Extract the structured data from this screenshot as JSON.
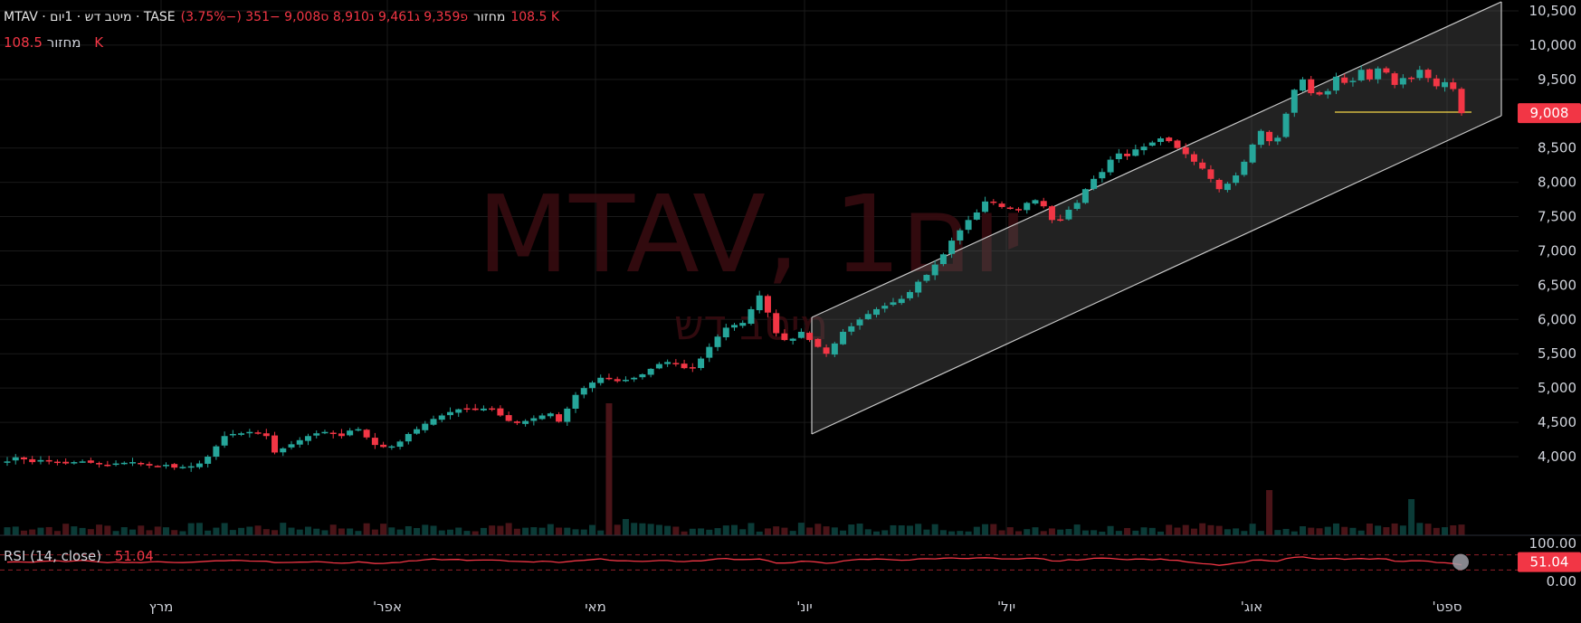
{
  "header": {
    "symbol_line": "MTAV · מיטב דש · 1יום · TASE",
    "ohlc_text": "פ9,359 ג9,461 נ8,910 ס9,008 −351 (−3.75%)",
    "volume_label": "מחזור",
    "volume_value": "108.5 K"
  },
  "volume_row": {
    "label": "מחזור",
    "value": "108.5 K"
  },
  "watermark": {
    "title": "MTAV, 1יום",
    "subtitle": "מיטב דש"
  },
  "rsi": {
    "label": "RSI (14, close)",
    "value": "51.04",
    "axis_labels": [
      "100.00",
      "0.00"
    ]
  },
  "price_badge": "9,008",
  "rsi_badge": "51.04",
  "colors": {
    "up": "#26a69a",
    "down": "#f23645",
    "background": "#000000",
    "grid": "#1a1a1a",
    "rsi_line": "#f23645",
    "channel_fill": "#5a5a5a",
    "channel_line": "#c8c8c8",
    "hline": "#f5d547"
  },
  "chart_data": {
    "type": "candlestick",
    "x_labels": [
      "מרץ",
      "'אפר",
      "מאי",
      "'יונ",
      "'יול",
      "'אוג",
      "'ספט"
    ],
    "y_ticks": [
      "10,500",
      "10,000",
      "9,500",
      "9,008",
      "8,500",
      "8,000",
      "7,500",
      "7,000",
      "6,500",
      "6,000",
      "5,500",
      "5,000",
      "4,500",
      "4,000"
    ],
    "ylim": [
      3700,
      10550
    ],
    "last_close": 9008,
    "closes": [
      3930,
      3990,
      3960,
      3920,
      3950,
      3940,
      3910,
      3900,
      3920,
      3930,
      3910,
      3890,
      3880,
      3900,
      3910,
      3920,
      3900,
      3870,
      3860,
      3880,
      3840,
      3850,
      3860,
      3900,
      4000,
      4150,
      4300,
      4330,
      4340,
      4360,
      4350,
      4300,
      4060,
      4120,
      4180,
      4240,
      4300,
      4340,
      4360,
      4330,
      4300,
      4380,
      4400,
      4280,
      4170,
      4140,
      4150,
      4220,
      4330,
      4400,
      4480,
      4550,
      4600,
      4650,
      4690,
      4700,
      4680,
      4700,
      4690,
      4600,
      4520,
      4490,
      4520,
      4560,
      4600,
      4630,
      4510,
      4700,
      4900,
      5000,
      5080,
      5150,
      5130,
      5100,
      5120,
      5150,
      5200,
      5280,
      5350,
      5380,
      5350,
      5290,
      5300,
      5430,
      5600,
      5750,
      5880,
      5920,
      5950,
      6150,
      6350,
      6100,
      5800,
      5700,
      5720,
      5820,
      5700,
      5600,
      5500,
      5650,
      5820,
      5900,
      6000,
      6080,
      6150,
      6200,
      6250,
      6300,
      6400,
      6550,
      6650,
      6800,
      6950,
      7150,
      7300,
      7450,
      7560,
      7720,
      7700,
      7640,
      7620,
      7600,
      7700,
      7740,
      7650,
      7450,
      7460,
      7600,
      7700,
      7900,
      8050,
      8150,
      8330,
      8420,
      8380,
      8480,
      8520,
      8580,
      8640,
      8600,
      8500,
      8410,
      8300,
      8200,
      8050,
      7900,
      7980,
      8100,
      8300,
      8550,
      8750,
      8600,
      8650,
      9000,
      9350,
      9500,
      9300,
      9280,
      9330,
      9540,
      9450,
      9480,
      9640,
      9500,
      9660,
      9600,
      9420,
      9520,
      9520,
      9640,
      9520,
      9400,
      9460,
      9359,
      9008
    ]
  }
}
